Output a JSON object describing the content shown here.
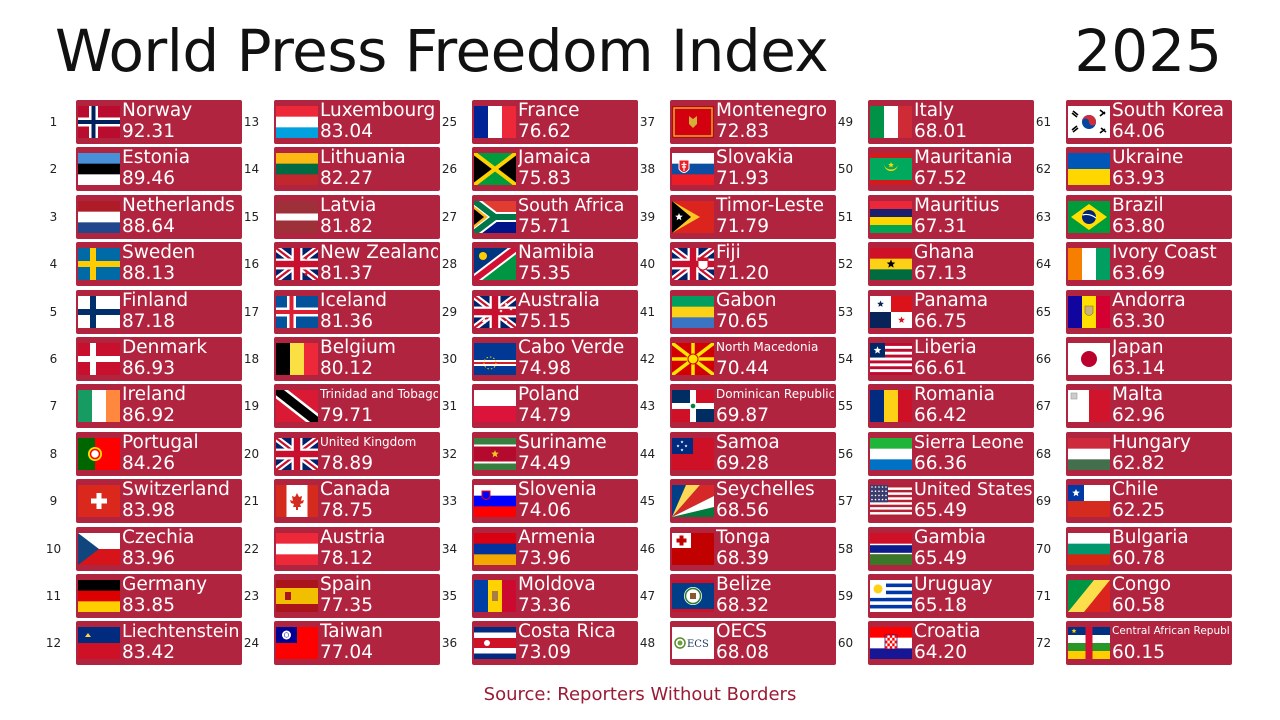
{
  "title": "World Press Freedom Index",
  "year": "2025",
  "source": "Source: Reporters Without Borders",
  "colors": {
    "card": "#b12440",
    "text": "#ffffff",
    "source": "#9a1b33"
  },
  "chart_data": {
    "type": "table",
    "columns": [
      "rank",
      "country",
      "score"
    ],
    "rows": [
      {
        "rank": "1",
        "country": "Norway",
        "score": "92.31",
        "flag": "norway"
      },
      {
        "rank": "2",
        "country": "Estonia",
        "score": "89.46",
        "flag": "estonia"
      },
      {
        "rank": "3",
        "country": "Netherlands",
        "score": "88.64",
        "flag": "netherlands"
      },
      {
        "rank": "4",
        "country": "Sweden",
        "score": "88.13",
        "flag": "sweden"
      },
      {
        "rank": "5",
        "country": "Finland",
        "score": "87.18",
        "flag": "finland"
      },
      {
        "rank": "6",
        "country": "Denmark",
        "score": "86.93",
        "flag": "denmark"
      },
      {
        "rank": "7",
        "country": "Ireland",
        "score": "86.92",
        "flag": "ireland"
      },
      {
        "rank": "8",
        "country": "Portugal",
        "score": "84.26",
        "flag": "portugal"
      },
      {
        "rank": "9",
        "country": "Switzerland",
        "score": "83.98",
        "flag": "switzerland"
      },
      {
        "rank": "10",
        "country": "Czechia",
        "score": "83.96",
        "flag": "czechia"
      },
      {
        "rank": "11",
        "country": "Germany",
        "score": "83.85",
        "flag": "germany"
      },
      {
        "rank": "12",
        "country": "Liechtenstein",
        "score": "83.42",
        "flag": "liechtenstein"
      },
      {
        "rank": "13",
        "country": "Luxembourg",
        "score": "83.04",
        "flag": "luxembourg"
      },
      {
        "rank": "14",
        "country": "Lithuania",
        "score": "82.27",
        "flag": "lithuania"
      },
      {
        "rank": "15",
        "country": "Latvia",
        "score": "81.82",
        "flag": "latvia"
      },
      {
        "rank": "16",
        "country": "New Zealand",
        "score": "81.37",
        "flag": "new-zealand"
      },
      {
        "rank": "17",
        "country": "Iceland",
        "score": "81.36",
        "flag": "iceland"
      },
      {
        "rank": "18",
        "country": "Belgium",
        "score": "80.12",
        "flag": "belgium"
      },
      {
        "rank": "19",
        "country": "Trinidad and Tobago",
        "score": "79.71",
        "flag": "trinidad"
      },
      {
        "rank": "20",
        "country": "United Kingdom",
        "score": "78.89",
        "flag": "uk"
      },
      {
        "rank": "21",
        "country": "Canada",
        "score": "78.75",
        "flag": "canada"
      },
      {
        "rank": "22",
        "country": "Austria",
        "score": "78.12",
        "flag": "austria"
      },
      {
        "rank": "23",
        "country": "Spain",
        "score": "77.35",
        "flag": "spain"
      },
      {
        "rank": "24",
        "country": "Taiwan",
        "score": "77.04",
        "flag": "taiwan"
      },
      {
        "rank": "25",
        "country": "France",
        "score": "76.62",
        "flag": "france"
      },
      {
        "rank": "26",
        "country": "Jamaica",
        "score": "75.83",
        "flag": "jamaica"
      },
      {
        "rank": "27",
        "country": "South Africa",
        "score": "75.71",
        "flag": "south-africa"
      },
      {
        "rank": "28",
        "country": "Namibia",
        "score": "75.35",
        "flag": "namibia"
      },
      {
        "rank": "29",
        "country": "Australia",
        "score": "75.15",
        "flag": "australia"
      },
      {
        "rank": "30",
        "country": "Cabo Verde",
        "score": "74.98",
        "flag": "cabo-verde"
      },
      {
        "rank": "31",
        "country": "Poland",
        "score": "74.79",
        "flag": "poland"
      },
      {
        "rank": "32",
        "country": "Suriname",
        "score": "74.49",
        "flag": "suriname"
      },
      {
        "rank": "33",
        "country": "Slovenia",
        "score": "74.06",
        "flag": "slovenia"
      },
      {
        "rank": "34",
        "country": "Armenia",
        "score": "73.96",
        "flag": "armenia"
      },
      {
        "rank": "35",
        "country": "Moldova",
        "score": "73.36",
        "flag": "moldova"
      },
      {
        "rank": "36",
        "country": "Costa Rica",
        "score": "73.09",
        "flag": "costa-rica"
      },
      {
        "rank": "37",
        "country": "Montenegro",
        "score": "72.83",
        "flag": "montenegro"
      },
      {
        "rank": "38",
        "country": "Slovakia",
        "score": "71.93",
        "flag": "slovakia"
      },
      {
        "rank": "39",
        "country": "Timor-Leste",
        "score": "71.79",
        "flag": "timor-leste"
      },
      {
        "rank": "40",
        "country": "Fiji",
        "score": "71.20",
        "flag": "fiji"
      },
      {
        "rank": "41",
        "country": "Gabon",
        "score": "70.65",
        "flag": "gabon"
      },
      {
        "rank": "42",
        "country": "North Macedonia",
        "score": "70.44",
        "flag": "north-macedonia"
      },
      {
        "rank": "43",
        "country": "Dominican Republic",
        "score": "69.87",
        "flag": "dominican-republic"
      },
      {
        "rank": "44",
        "country": "Samoa",
        "score": "69.28",
        "flag": "samoa"
      },
      {
        "rank": "45",
        "country": "Seychelles",
        "score": "68.56",
        "flag": "seychelles"
      },
      {
        "rank": "46",
        "country": "Tonga",
        "score": "68.39",
        "flag": "tonga"
      },
      {
        "rank": "47",
        "country": "Belize",
        "score": "68.32",
        "flag": "belize"
      },
      {
        "rank": "48",
        "country": "OECS",
        "score": "68.08",
        "flag": "oecs",
        "flag_text": "ECS"
      },
      {
        "rank": "49",
        "country": "Italy",
        "score": "68.01",
        "flag": "italy"
      },
      {
        "rank": "50",
        "country": "Mauritania",
        "score": "67.52",
        "flag": "mauritania"
      },
      {
        "rank": "51",
        "country": "Mauritius",
        "score": "67.31",
        "flag": "mauritius"
      },
      {
        "rank": "52",
        "country": "Ghana",
        "score": "67.13",
        "flag": "ghana"
      },
      {
        "rank": "53",
        "country": "Panama",
        "score": "66.75",
        "flag": "panama"
      },
      {
        "rank": "54",
        "country": "Liberia",
        "score": "66.61",
        "flag": "liberia"
      },
      {
        "rank": "55",
        "country": "Romania",
        "score": "66.42",
        "flag": "romania"
      },
      {
        "rank": "56",
        "country": "Sierra Leone",
        "score": "66.36",
        "flag": "sierra-leone"
      },
      {
        "rank": "57",
        "country": "United States",
        "score": "65.49",
        "flag": "usa"
      },
      {
        "rank": "58",
        "country": "Gambia",
        "score": "65.49",
        "flag": "gambia"
      },
      {
        "rank": "59",
        "country": "Uruguay",
        "score": "65.18",
        "flag": "uruguay"
      },
      {
        "rank": "60",
        "country": "Croatia",
        "score": "64.20",
        "flag": "croatia"
      },
      {
        "rank": "61",
        "country": "South Korea",
        "score": "64.06",
        "flag": "south-korea"
      },
      {
        "rank": "62",
        "country": "Ukraine",
        "score": "63.93",
        "flag": "ukraine"
      },
      {
        "rank": "63",
        "country": "Brazil",
        "score": "63.80",
        "flag": "brazil"
      },
      {
        "rank": "64",
        "country": "Ivory Coast",
        "score": "63.69",
        "flag": "ivory-coast"
      },
      {
        "rank": "65",
        "country": "Andorra",
        "score": "63.30",
        "flag": "andorra"
      },
      {
        "rank": "66",
        "country": "Japan",
        "score": "63.14",
        "flag": "japan"
      },
      {
        "rank": "67",
        "country": "Malta",
        "score": "62.96",
        "flag": "malta"
      },
      {
        "rank": "68",
        "country": "Hungary",
        "score": "62.82",
        "flag": "hungary"
      },
      {
        "rank": "69",
        "country": "Chile",
        "score": "62.25",
        "flag": "chile"
      },
      {
        "rank": "70",
        "country": "Bulgaria",
        "score": "60.78",
        "flag": "bulgaria"
      },
      {
        "rank": "71",
        "country": "Congo",
        "score": "60.58",
        "flag": "congo"
      },
      {
        "rank": "72",
        "country": "Central African Republic",
        "score": "60.15",
        "flag": "central-african-republic"
      }
    ]
  }
}
